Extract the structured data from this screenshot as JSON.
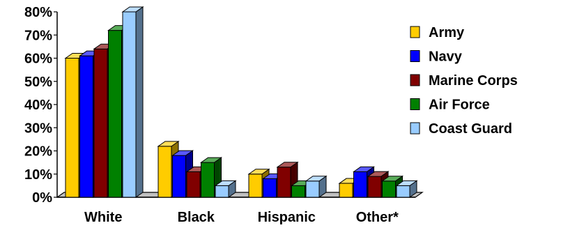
{
  "chart_data": {
    "type": "bar",
    "title": "",
    "xlabel": "",
    "ylabel": "",
    "categories": [
      "White",
      "Black",
      "Hispanic",
      "Other*"
    ],
    "series": [
      {
        "name": "Army",
        "values": [
          60,
          22,
          10,
          6
        ],
        "color": "#FFCC00"
      },
      {
        "name": "Navy",
        "values": [
          61,
          18,
          8,
          11
        ],
        "color": "#0000FF"
      },
      {
        "name": "Marine Corps",
        "values": [
          64,
          11,
          13,
          9
        ],
        "color": "#800000"
      },
      {
        "name": "Air Force",
        "values": [
          72,
          15,
          5,
          7
        ],
        "color": "#008000"
      },
      {
        "name": "Coast Guard",
        "values": [
          80,
          5,
          7,
          5
        ],
        "color": "#99CCFF"
      }
    ],
    "ylim": [
      0,
      80
    ],
    "yticks": [
      "0%",
      "10%",
      "20%",
      "30%",
      "40%",
      "50%",
      "60%",
      "70%",
      "80%"
    ],
    "legend_position": "right",
    "grid": false,
    "style": "3d-clustered-column"
  }
}
